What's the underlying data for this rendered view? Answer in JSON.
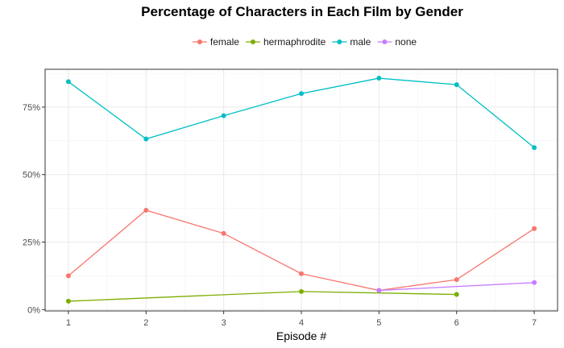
{
  "chart_data": {
    "type": "line",
    "title": "Percentage of Characters in Each Film by Gender",
    "xlabel": "Episode #",
    "ylabel": "",
    "x_ticks": [
      "1",
      "2",
      "3",
      "4",
      "5",
      "6",
      "7"
    ],
    "y_ticks": [
      "0%",
      "25%",
      "50%",
      "75%"
    ],
    "xlim": [
      0.7,
      7.3
    ],
    "ylim": [
      -0.5,
      89
    ],
    "grid": true,
    "legend_position": "top",
    "series": [
      {
        "name": "female",
        "color": "#F8766D",
        "x": [
          1,
          2,
          3,
          4,
          5,
          6,
          7
        ],
        "y": [
          12.5,
          36.8,
          28.2,
          13.3,
          7.1,
          11.1,
          30.0
        ]
      },
      {
        "name": "hermaphrodite",
        "color": "#7CAE00",
        "x": [
          1,
          4,
          6
        ],
        "y": [
          3.1,
          6.7,
          5.6
        ]
      },
      {
        "name": "male",
        "color": "#00BFC4",
        "x": [
          1,
          2,
          3,
          4,
          5,
          6,
          7
        ],
        "y": [
          84.4,
          63.2,
          71.8,
          80.0,
          85.7,
          83.3,
          60.0
        ]
      },
      {
        "name": "none",
        "color": "#C77CFF",
        "x": [
          5,
          7
        ],
        "y": [
          7.1,
          10.0
        ]
      }
    ]
  }
}
